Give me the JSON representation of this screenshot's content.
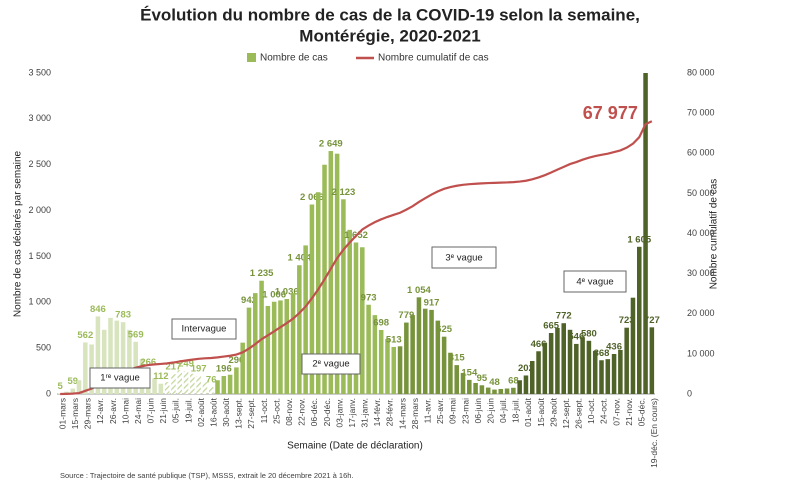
{
  "chart_data": {
    "type": "bar_line",
    "title": [
      "Évolution du nombre de cas de la COVID-19 selon la semaine,",
      "Montérégie, 2020-2021"
    ],
    "y_label": "Nombre de cas déclarés par semaine",
    "y2_label": "Nombre cumulatif de cas",
    "x_label": "Semaine (Date de déclaration)",
    "source": "Source : Trajectoire de santé publique (TSP), MSSS, extrait le 20 décembre 2021 à 16h.",
    "annotations": [
      "1ʳᵉ vague",
      "Intervague",
      "2ᵉ vague",
      "3ᵉ vague",
      "4ᵉ vague"
    ],
    "categories": [
      "01-mars",
      null,
      "15-mars",
      null,
      "29-mars",
      null,
      "12-avr.",
      null,
      "26-avr.",
      null,
      "10-mai",
      null,
      "24-mai",
      null,
      "07-juin",
      null,
      "21-juin",
      null,
      "05-juil.",
      null,
      "19-juil.",
      null,
      "02-août",
      null,
      "16-août",
      null,
      "30-août",
      null,
      "13-sept.",
      null,
      "27-sept.",
      null,
      "11-oct.",
      null,
      "25-oct.",
      null,
      "08-nov.",
      null,
      "22-nov.",
      null,
      "06-déc.",
      null,
      "20-déc.",
      null,
      "03-janv.",
      null,
      "17-janv.",
      null,
      "31-janv.",
      null,
      "14-févr.",
      null,
      "28-févr.",
      null,
      "14-mars",
      null,
      "28-mars",
      null,
      "11-avr.",
      null,
      "25-avr.",
      null,
      "09-mai",
      null,
      "23-mai",
      null,
      "06-juin",
      null,
      "20-juin",
      null,
      "04-juil.",
      null,
      "18-juil.",
      null,
      "01-août",
      null,
      "15-août",
      null,
      "29-août",
      null,
      "12-sept.",
      null,
      "26-sept.",
      null,
      "10-oct.",
      null,
      "24-oct.",
      null,
      "07-nov.",
      null,
      "21-nov.",
      null,
      "05-déc.",
      null,
      "19-déc. (En cours)"
    ],
    "series": [
      {
        "name": "Nombre de cas",
        "type": "bar",
        "color": "#9bbb59",
        "values": [
          5,
          25,
          59,
          150,
          562,
          540,
          846,
          700,
          830,
          800,
          783,
          700,
          569,
          380,
          266,
          170,
          112,
          130,
          217,
          260,
          249,
          220,
          197,
          130,
          76,
          150,
          196,
          210,
          290,
          560,
          942,
          1100,
          1235,
          960,
          1006,
          1020,
          1036,
          1100,
          1404,
          1620,
          2066,
          2200,
          2500,
          2649,
          2620,
          2123,
          1790,
          1652,
          1600,
          973,
          860,
          698,
          600,
          513,
          520,
          779,
          860,
          1054,
          930,
          917,
          800,
          625,
          450,
          315,
          230,
          154,
          120,
          95,
          70,
          48,
          55,
          60,
          68,
          150,
          202,
          360,
          466,
          560,
          665,
          720,
          772,
          700,
          546,
          620,
          580,
          470,
          368,
          380,
          436,
          480,
          723,
          1050,
          1605,
          3500,
          727
        ],
        "value_labels": [
          "5",
          null,
          "59",
          null,
          "562",
          null,
          "846",
          null,
          null,
          null,
          "783",
          null,
          "569",
          null,
          "266",
          null,
          "112",
          null,
          "217",
          null,
          "249",
          null,
          "197",
          null,
          "76",
          null,
          "196",
          null,
          "290",
          null,
          "942",
          null,
          "1 235",
          null,
          "1 006",
          null,
          "1 036",
          null,
          "1 404",
          null,
          "2 066",
          null,
          null,
          "2 649",
          null,
          "2 123",
          null,
          "1 652",
          null,
          "973",
          null,
          "698",
          null,
          "513",
          null,
          "779",
          null,
          "1 054",
          null,
          "917",
          null,
          "625",
          null,
          "315",
          null,
          "154",
          null,
          "95",
          null,
          "48",
          null,
          null,
          "68",
          null,
          "202",
          null,
          "466",
          null,
          "665",
          null,
          "772",
          null,
          "546",
          null,
          "580",
          null,
          "368",
          null,
          "436",
          null,
          "723",
          null,
          "1 605",
          null,
          "727"
        ],
        "groups": [
          {
            "count": 17,
            "color": "#d7e4bd",
            "label_color": "#9bbb59"
          },
          {
            "count": 8,
            "color": "#c3d69b",
            "pattern": "hatch",
            "label_color": "#9bbb59"
          },
          {
            "count": 29,
            "color": "#9bbb59",
            "label_color": "#77933c"
          },
          {
            "count": 19,
            "color": "#77933c",
            "label_color": "#77933c"
          },
          {
            "count": 22,
            "color": "#4f6228",
            "label_color": "#4f6228"
          }
        ]
      },
      {
        "name": "Nombre cumulatif de cas",
        "type": "line",
        "axis": "y2",
        "color": "#c0504d",
        "values": [
          5,
          30,
          89,
          239,
          801,
          1341,
          2187,
          2887,
          3717,
          4517,
          5300,
          6000,
          6569,
          6949,
          7215,
          7385,
          7497,
          7627,
          7844,
          8104,
          8353,
          8573,
          8770,
          8900,
          8976,
          9126,
          9322,
          9532,
          9822,
          10382,
          11324,
          12424,
          13659,
          14619,
          15625,
          16645,
          17681,
          18781,
          20185,
          21805,
          23871,
          26071,
          28571,
          31220,
          33840,
          35963,
          37753,
          39405,
          41005,
          41978,
          42838,
          43536,
          44136,
          44649,
          45169,
          45948,
          46808,
          47862,
          48792,
          49709,
          50509,
          51134,
          51584,
          51899,
          52129,
          52283,
          52403,
          52498,
          52568,
          52616,
          52671,
          52731,
          52799,
          52949,
          53151,
          53511,
          53977,
          54537,
          55202,
          55922,
          56600,
          57300,
          57800,
          58400,
          58900,
          59300,
          59600,
          59900,
          60300,
          60700,
          61400,
          62400,
          64000,
          67250,
          67977
        ],
        "value_labels": [
          null,
          null,
          null,
          null,
          null,
          null,
          null,
          null,
          null,
          null,
          null,
          null,
          null,
          null,
          null,
          null,
          null,
          null,
          null,
          null,
          null,
          null,
          null,
          null,
          null,
          null,
          null,
          null,
          null,
          null,
          null,
          null,
          null,
          null,
          null,
          null,
          null,
          null,
          null,
          null,
          null,
          null,
          null,
          null,
          null,
          null,
          null,
          null,
          null,
          null,
          null,
          null,
          null,
          null,
          null,
          null,
          null,
          null,
          null,
          null,
          null,
          null,
          null,
          null,
          null,
          null,
          null,
          null,
          null,
          null,
          null,
          null,
          null,
          null,
          null,
          null,
          null,
          null,
          null,
          null,
          null,
          null,
          null,
          null,
          null,
          null,
          null,
          null,
          null,
          null,
          null,
          null,
          null,
          null,
          "67 977"
        ]
      }
    ],
    "ylim": [
      0,
      3500
    ],
    "yticks": [
      0,
      {
        "value": 500,
        "label": "500"
      },
      {
        "value": 1000,
        "label": "1 000"
      },
      {
        "value": 1500,
        "label": "1 500"
      },
      {
        "value": 2000,
        "label": "2 000"
      },
      {
        "value": 2500,
        "label": "2 500"
      },
      {
        "value": 3000,
        "label": "3 000"
      },
      {
        "value": 3500,
        "label": "3 500"
      }
    ],
    "y2lim": [
      0,
      80000
    ],
    "y2ticks": [
      0,
      {
        "value": 10000,
        "label": "10 000"
      },
      {
        "value": 20000,
        "label": "20 000"
      },
      {
        "value": 30000,
        "label": "30 000"
      },
      {
        "value": 40000,
        "label": "40 000"
      },
      {
        "value": 50000,
        "label": "50 000"
      },
      {
        "value": 60000,
        "label": "60 000"
      },
      {
        "value": 70000,
        "label": "70 000"
      },
      {
        "value": 80000,
        "label": "80 000"
      }
    ],
    "grid": false,
    "legend": "top"
  }
}
